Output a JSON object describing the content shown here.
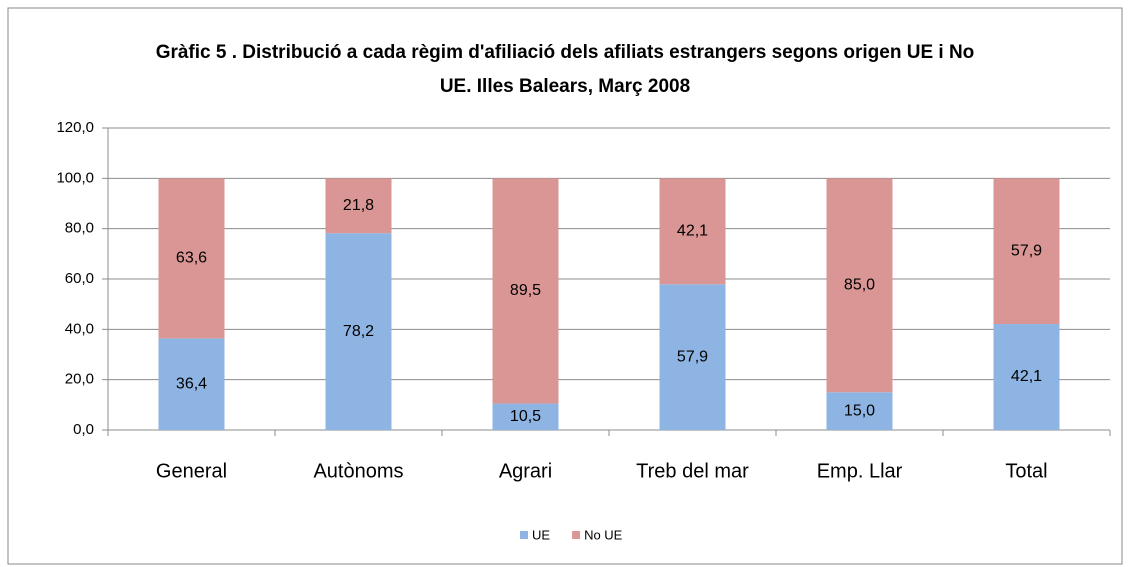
{
  "chart_data": {
    "type": "stacked_bar",
    "title": "Gràfic 5 . Distribució a cada règim d'afiliació dels afiliats estrangers segons origen UE i No UE. Illes Balears, Març 2008",
    "categories": [
      "General",
      "Autònoms",
      "Agrari",
      "Treb del mar",
      "Emp. Llar",
      "Total"
    ],
    "series": [
      {
        "name": "UE",
        "color": "#8eb4e3",
        "values": [
          36.4,
          78.2,
          10.5,
          57.9,
          15.0,
          42.1
        ],
        "value_labels": [
          "36,4",
          "78,2",
          "10,5",
          "57,9",
          "15,0",
          "42,1"
        ]
      },
      {
        "name": "No UE",
        "color": "#d99694",
        "values": [
          63.6,
          21.8,
          89.5,
          42.1,
          85.0,
          57.9
        ],
        "value_labels": [
          "63,6",
          "21,8",
          "89,5",
          "42,1",
          "85,0",
          "57,9"
        ]
      }
    ],
    "ylim": [
      0,
      120
    ],
    "yticks": [
      {
        "value": 0,
        "label": "0,0"
      },
      {
        "value": 20,
        "label": "20,0"
      },
      {
        "value": 40,
        "label": "40,0"
      },
      {
        "value": 60,
        "label": "60,0"
      },
      {
        "value": 80,
        "label": "80,0"
      },
      {
        "value": 100,
        "label": "100,0"
      },
      {
        "value": 120,
        "label": "120,0"
      }
    ],
    "grid": true,
    "legend": "bottom"
  }
}
